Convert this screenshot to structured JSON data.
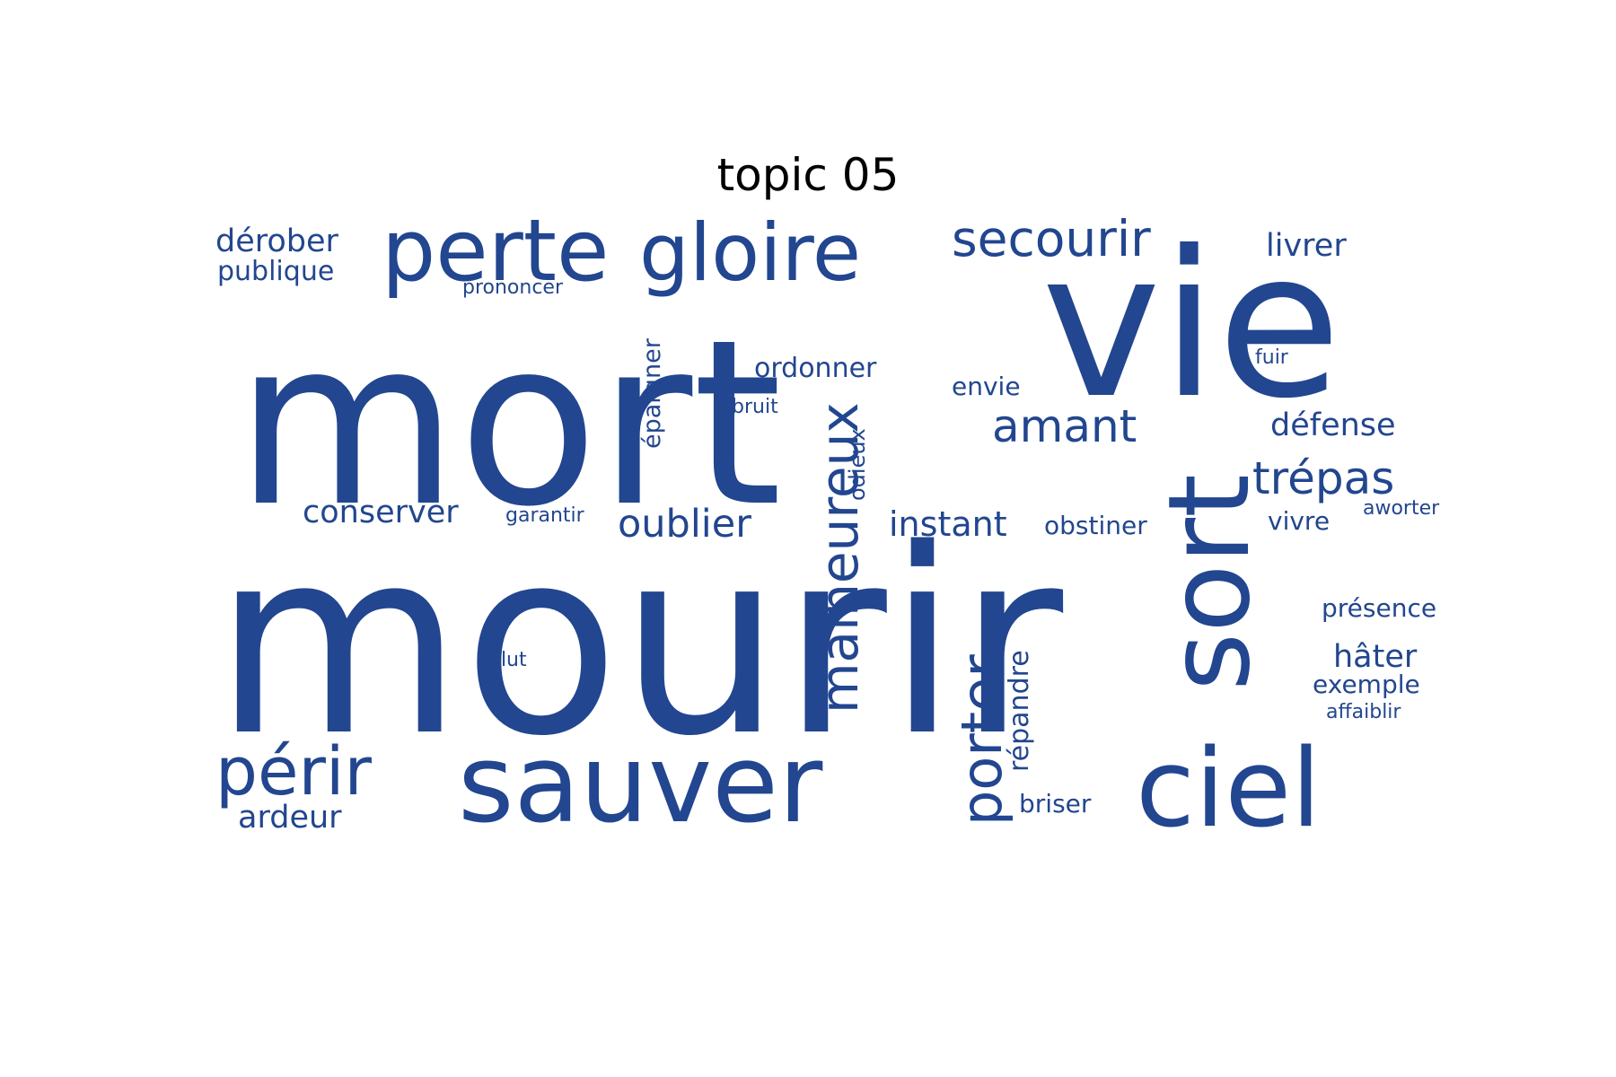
{
  "title": "topic 05",
  "word_color": "#22468f",
  "words": [
    {
      "text": "mourir",
      "weight": 100
    },
    {
      "text": "mort",
      "weight": 92
    },
    {
      "text": "vie",
      "weight": 80
    },
    {
      "text": "sort",
      "weight": 48
    },
    {
      "text": "sauver",
      "weight": 38
    },
    {
      "text": "ciel",
      "weight": 38
    },
    {
      "text": "perte",
      "weight": 32
    },
    {
      "text": "gloire",
      "weight": 30
    },
    {
      "text": "périr",
      "weight": 26
    },
    {
      "text": "malheureux",
      "weight": 24
    },
    {
      "text": "porter",
      "weight": 22
    },
    {
      "text": "secourir",
      "weight": 18
    },
    {
      "text": "amant",
      "weight": 17
    },
    {
      "text": "trépas",
      "weight": 17
    },
    {
      "text": "oublier",
      "weight": 15
    },
    {
      "text": "instant",
      "weight": 13
    },
    {
      "text": "défense",
      "weight": 12
    },
    {
      "text": "hâter",
      "weight": 12
    },
    {
      "text": "conserver",
      "weight": 12
    },
    {
      "text": "livrer",
      "weight": 12
    },
    {
      "text": "dérober",
      "weight": 12
    },
    {
      "text": "ardeur",
      "weight": 12
    },
    {
      "text": "ordonner",
      "weight": 11
    },
    {
      "text": "répandre",
      "weight": 11
    },
    {
      "text": "épargner",
      "weight": 10
    },
    {
      "text": "publique",
      "weight": 10
    },
    {
      "text": "briser",
      "weight": 10
    },
    {
      "text": "exemple",
      "weight": 10
    },
    {
      "text": "présence",
      "weight": 10
    },
    {
      "text": "obstiner",
      "weight": 9
    },
    {
      "text": "envie",
      "weight": 9
    },
    {
      "text": "vivre",
      "weight": 9
    },
    {
      "text": "odieux",
      "weight": 9
    },
    {
      "text": "fuir",
      "weight": 7
    },
    {
      "text": "bruit",
      "weight": 7
    },
    {
      "text": "prononcer",
      "weight": 7
    },
    {
      "text": "garantir",
      "weight": 7
    },
    {
      "text": "aworter",
      "weight": 7
    },
    {
      "text": "affaiblir",
      "weight": 7
    },
    {
      "text": "salut",
      "weight": 7
    }
  ]
}
